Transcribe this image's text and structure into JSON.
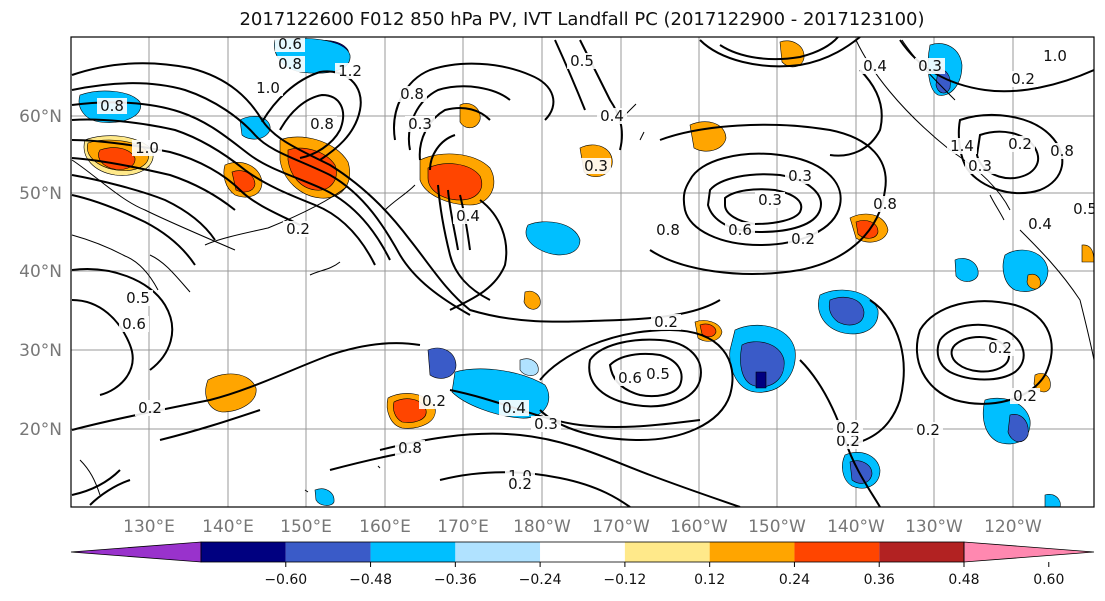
{
  "title": "2017122600 F012 850 hPa PV, IVT Landfall PC (2017122900 - 2017123100)",
  "map": {
    "lat_ticks": [
      "60°N",
      "50°N",
      "40°N",
      "30°N",
      "20°N"
    ],
    "lon_ticks": [
      "130°E",
      "140°E",
      "150°E",
      "160°E",
      "170°E",
      "180°W",
      "170°W",
      "160°W",
      "150°W",
      "140°W",
      "130°W",
      "120°W"
    ],
    "contour_labels": [
      "1.0",
      "0.8",
      "1.2",
      "0.6",
      "0.8",
      "0.8",
      "1.0",
      "0.2",
      "0.5",
      "0.6",
      "0.3",
      "0.2",
      "0.8",
      "1.0",
      "0.3",
      "0.3",
      "0.6",
      "0.8",
      "0.2",
      "0.8",
      "0.5",
      "0.8",
      "0.4",
      "0.2",
      "0.6",
      "0.5",
      "0.4",
      "0.3",
      "0.2",
      "0.2",
      "0.2",
      "0.3",
      "0.2",
      "0.3",
      "0.2",
      "0.2",
      "0.2",
      "0.8",
      "0.5",
      "0.4",
      "0.2",
      "1.0",
      "0.4",
      "1.4",
      "0.3",
      "0.4",
      "0.2"
    ]
  },
  "colorbar": {
    "ticks": [
      "−0.60",
      "−0.48",
      "−0.36",
      "−0.24",
      "−0.12",
      "0.12",
      "0.24",
      "0.36",
      "0.48",
      "0.60"
    ],
    "colors": [
      "#9932cc",
      "#000080",
      "#3a5bc8",
      "#00bfff",
      "#b0e2ff",
      "#ffffff",
      "#ffe98a",
      "#ffa500",
      "#ff4500",
      "#b22222",
      "#ff88b0"
    ]
  }
}
